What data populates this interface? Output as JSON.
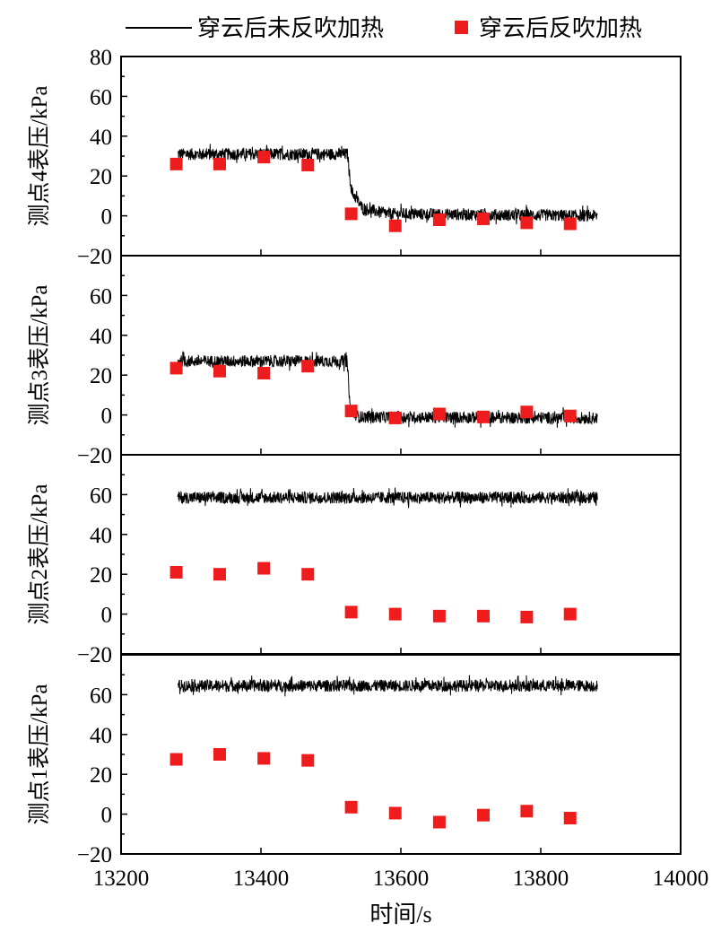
{
  "legend": {
    "line_label": "穿云后未反吹加热",
    "marker_label": "穿云后反吹加热"
  },
  "chart_data": {
    "type": "line+scatter",
    "xlabel": "时间/s",
    "xlim": [
      13200,
      14000
    ],
    "xticks": [
      13200,
      13400,
      13600,
      13800,
      14000
    ],
    "legend_position": "top",
    "colors": {
      "line": "#000000",
      "marker": "#ee1c1c"
    },
    "panels": [
      {
        "ylabel": "测点4表压/kPa",
        "ylim": [
          -20,
          80
        ],
        "yticks": [
          -20,
          0,
          20,
          40,
          60,
          80
        ],
        "line": {
          "x": [
            13281,
            13524,
            13526,
            13530,
            13545,
            13580,
            13881
          ],
          "y": [
            31,
            31,
            22,
            12,
            4,
            1,
            0
          ],
          "noise_kpa": 3
        },
        "markers": {
          "x": [
            13279,
            13341,
            13404,
            13467,
            13529,
            13592,
            13655,
            13718,
            13780,
            13842
          ],
          "y": [
            26,
            26,
            29.5,
            25.5,
            1,
            -5,
            -2,
            -1.5,
            -3.5,
            -4
          ]
        }
      },
      {
        "ylabel": "测点3表压/kPa",
        "ylim": [
          -20,
          80
        ],
        "yticks": [
          -20,
          0,
          20,
          40,
          60
        ],
        "line": {
          "x": [
            13281,
            13523,
            13528,
            13540,
            13881
          ],
          "y": [
            27,
            27,
            2,
            -1,
            -1.5
          ],
          "noise_kpa": 3
        },
        "markers": {
          "x": [
            13279,
            13341,
            13404,
            13467,
            13529,
            13592,
            13655,
            13718,
            13780,
            13842
          ],
          "y": [
            23.5,
            22,
            21,
            24.5,
            2,
            -1.5,
            0.5,
            -1,
            1.5,
            -0.5
          ]
        }
      },
      {
        "ylabel": "测点2表压/kPa",
        "ylim": [
          -20,
          80
        ],
        "yticks": [
          -20,
          0,
          20,
          40,
          60
        ],
        "line": {
          "x": [
            13281,
            13881
          ],
          "y": [
            58.5,
            58.5
          ],
          "noise_kpa": 3
        },
        "markers": {
          "x": [
            13279,
            13341,
            13404,
            13467,
            13529,
            13592,
            13655,
            13718,
            13780,
            13842
          ],
          "y": [
            21,
            20,
            23,
            20,
            1,
            0,
            -1,
            -1,
            -1.5,
            0
          ]
        }
      },
      {
        "ylabel": "测点1表压/kPa",
        "ylim": [
          -20,
          80
        ],
        "yticks": [
          -20,
          0,
          20,
          40,
          60
        ],
        "line": {
          "x": [
            13281,
            13881
          ],
          "y": [
            64.5,
            64.5
          ],
          "noise_kpa": 3
        },
        "markers": {
          "x": [
            13279,
            13341,
            13404,
            13467,
            13529,
            13592,
            13655,
            13718,
            13780,
            13842
          ],
          "y": [
            27.5,
            30,
            28,
            27,
            3.5,
            0.5,
            -4,
            -0.5,
            1.5,
            -2
          ]
        }
      }
    ]
  }
}
